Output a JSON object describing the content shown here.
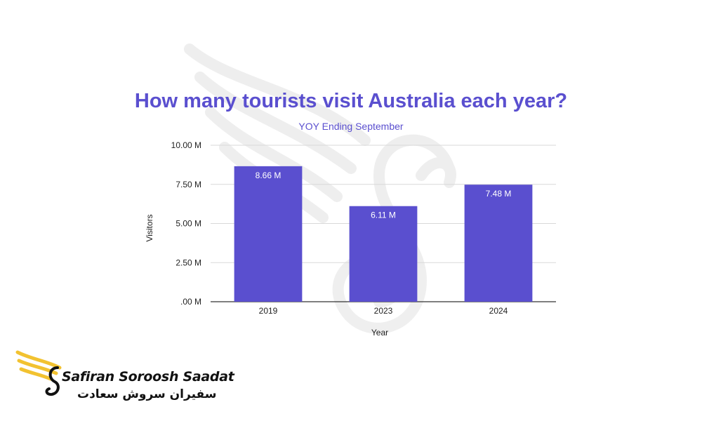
{
  "chart_data": {
    "type": "bar",
    "title": "How many tourists visit Australia each year?",
    "subtitle": "YOY Ending September",
    "xlabel": "Year",
    "ylabel": "Visitors",
    "categories": [
      "2019",
      "2023",
      "2024"
    ],
    "values": [
      8.66,
      6.11,
      7.48
    ],
    "value_labels": [
      "8.66 M",
      "6.11 M",
      "7.48 M"
    ],
    "ylim": [
      0,
      10
    ],
    "yticks": [
      0,
      2.5,
      5,
      7.5,
      10
    ],
    "ytick_labels": [
      ".00 M",
      "2.50 M",
      "5.00 M",
      "7.50 M",
      "10.00 M"
    ],
    "grid": true,
    "bar_color": "#5a4fcf",
    "title_color": "#5a4fcf"
  },
  "logo": {
    "name_en": "Safiran Soroosh Saadat",
    "name_fa": "سفیران سروش سعادت",
    "accent_color": "#f2c230"
  }
}
